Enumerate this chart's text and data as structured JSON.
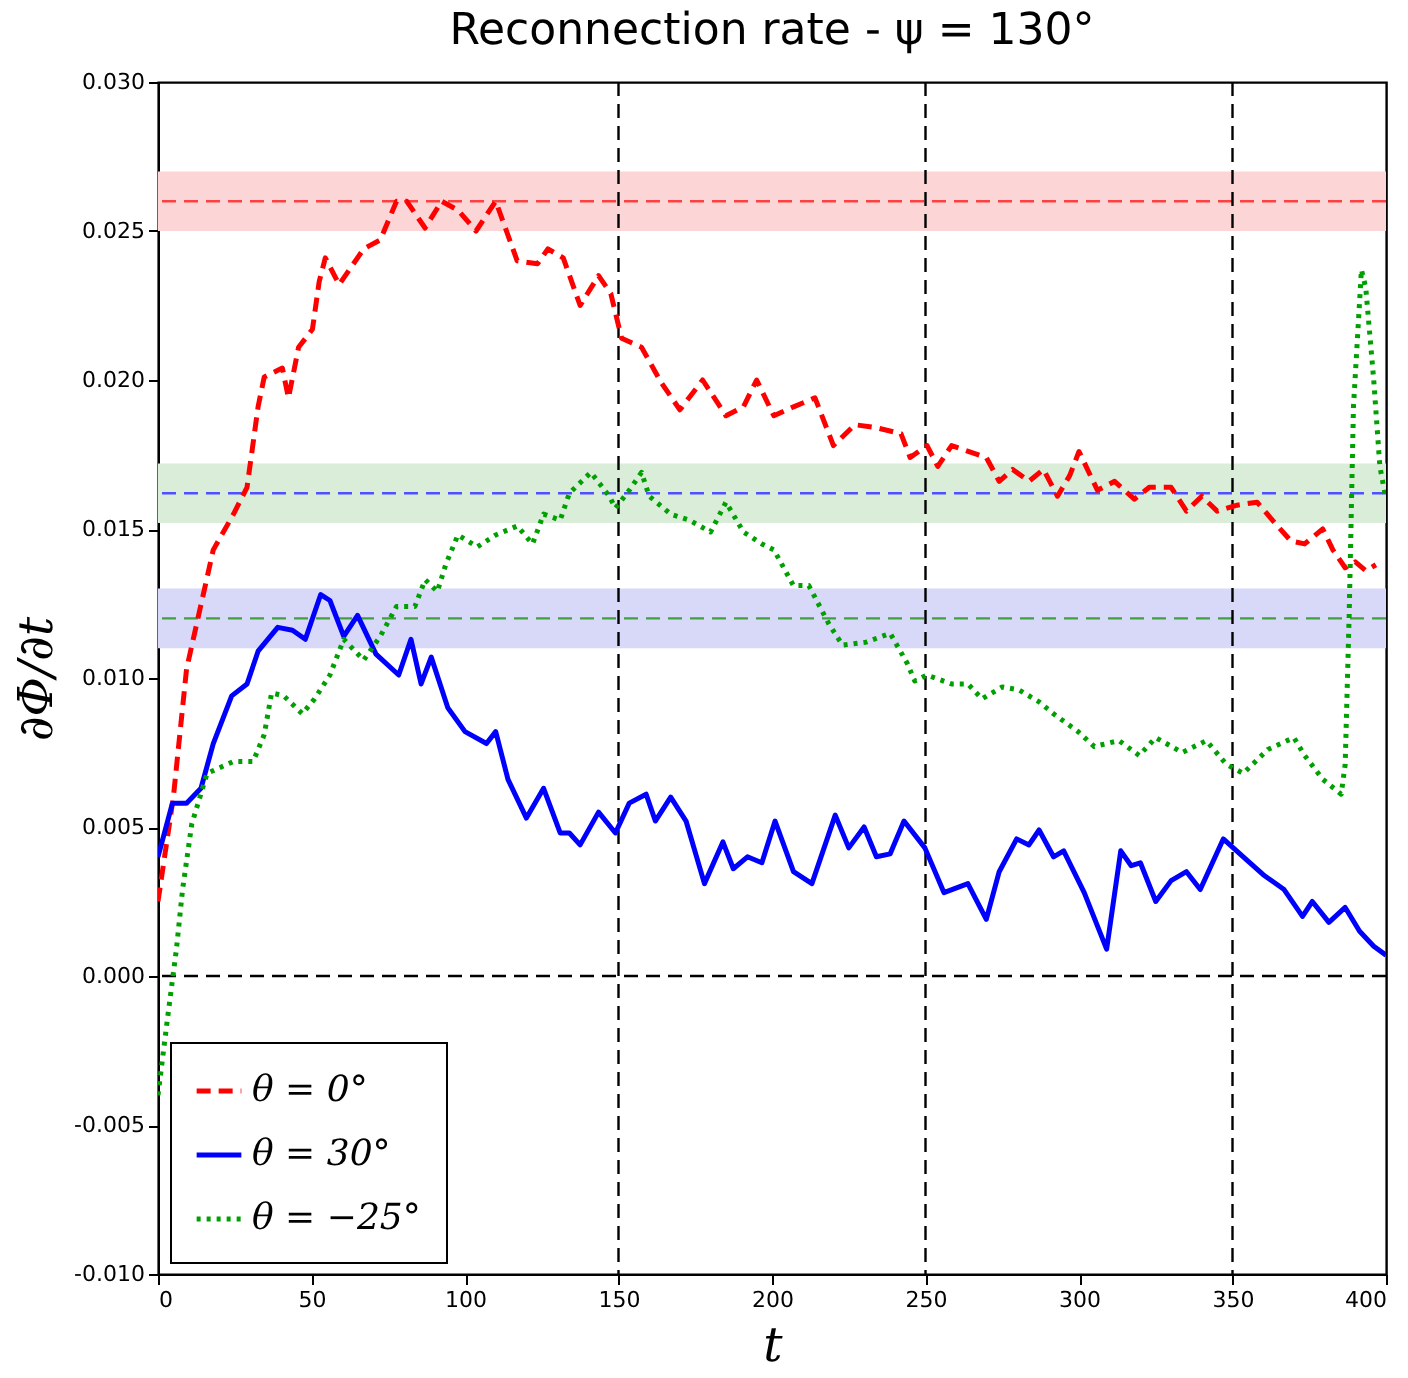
{
  "chart_data": {
    "type": "line",
    "title": "Reconnection rate - ψ = 130°",
    "xlabel": "t",
    "ylabel": "∂Φ/∂t",
    "xlim": [
      0,
      400
    ],
    "xticks": [
      0,
      50,
      100,
      150,
      200,
      250,
      300,
      350,
      400
    ],
    "ylim": [
      -0.01,
      0.03
    ],
    "yticks": [
      {
        "value": -0.01,
        "label": "-0.010"
      },
      {
        "value": -0.005,
        "label": "-0.005"
      },
      {
        "value": 0,
        "label": "0.000"
      },
      {
        "value": 0.005,
        "label": "0.005"
      },
      {
        "value": 0.01,
        "label": "0.010"
      },
      {
        "value": 0.015,
        "label": "0.015"
      },
      {
        "value": 0.02,
        "label": "0.020"
      },
      {
        "value": 0.025,
        "label": "0.025"
      },
      {
        "value": 0.03,
        "label": "0.030"
      }
    ],
    "grid": false,
    "legend": "bottom left",
    "bands": [
      {
        "axis": "y",
        "from": 0.025,
        "to": 0.027,
        "color": "#fcd6d6"
      },
      {
        "axis": "y",
        "from": 0.0152,
        "to": 0.0172,
        "color": "#d9edd9"
      },
      {
        "axis": "y",
        "from": 0.011,
        "to": 0.013,
        "color": "#d8d8f8"
      }
    ],
    "ref_lines": [
      {
        "axis": "y",
        "value": 0.026,
        "color": "#ff4040",
        "line_style": "dashed"
      },
      {
        "axis": "y",
        "value": 0.0162,
        "color": "#5050ff",
        "line_style": "dashed"
      },
      {
        "axis": "y",
        "value": 0.012,
        "color": "#40a040",
        "line_style": "dashed"
      },
      {
        "axis": "y",
        "value": 0,
        "color": "#000000",
        "line_style": "dashed"
      },
      {
        "axis": "x",
        "value": 150,
        "color": "#000000",
        "line_style": "dashed"
      },
      {
        "axis": "x",
        "value": 250,
        "color": "#000000",
        "line_style": "dashed"
      },
      {
        "axis": "x",
        "value": 350,
        "color": "#000000",
        "line_style": "dashed"
      }
    ],
    "series": [
      {
        "name": "θ = 0°",
        "color": "#ff0000",
        "line_style": "dashed",
        "x": [
          0,
          5,
          9.3,
          18,
          24.6,
          29,
          32.6,
          34.6,
          40.5,
          42.5,
          45.8,
          50.3,
          52.5,
          54.5,
          59,
          67,
          72.4,
          77.7,
          81,
          87,
          92.4,
          97.7,
          103.6,
          110,
          117,
          123.6,
          127,
          132,
          137.5,
          143.5,
          147.5,
          151,
          157.5,
          164,
          170,
          177.4,
          185,
          190.7,
          195,
          200.6,
          207,
          214,
          220,
          227,
          234,
          242,
          245,
          250.5,
          254,
          258.5,
          269.8,
          274,
          278.4,
          283.7,
          288.4,
          293,
          297,
          300,
          306,
          311.6,
          318,
          322.9,
          330,
          335,
          340,
          345,
          351.5,
          358,
          363,
          369,
          373.5,
          379.4,
          382.7,
          386.7,
          390,
          393.4,
          396.7
        ],
        "values": [
          0.0025,
          0.006,
          0.0103,
          0.0143,
          0.0155,
          0.0164,
          0.0191,
          0.0201,
          0.0204,
          0.0194,
          0.0211,
          0.0217,
          0.0233,
          0.0241,
          0.0232,
          0.0244,
          0.0247,
          0.026,
          0.026,
          0.0251,
          0.026,
          0.0257,
          0.025,
          0.026,
          0.024,
          0.0239,
          0.0244,
          0.0241,
          0.0225,
          0.0235,
          0.0229,
          0.0214,
          0.0211,
          0.0199,
          0.019,
          0.02,
          0.0188,
          0.0191,
          0.02,
          0.0188,
          0.0191,
          0.0194,
          0.0178,
          0.0185,
          0.0184,
          0.0182,
          0.0174,
          0.0178,
          0.0171,
          0.0178,
          0.0174,
          0.0166,
          0.017,
          0.0166,
          0.017,
          0.0161,
          0.0168,
          0.0176,
          0.0163,
          0.0166,
          0.016,
          0.0164,
          0.0164,
          0.0156,
          0.0161,
          0.0156,
          0.0158,
          0.0159,
          0.0153,
          0.0146,
          0.0145,
          0.015,
          0.0143,
          0.0137,
          0.0139,
          0.0136,
          0.0138
        ]
      },
      {
        "name": "θ = 30°",
        "color": "#0000ff",
        "line_style": "solid",
        "x": [
          0,
          4.7,
          9.3,
          14,
          18,
          24,
          29,
          32.6,
          39,
          43.8,
          48,
          53,
          56,
          60.5,
          65,
          71,
          78.4,
          82.4,
          85.7,
          89,
          94.4,
          100,
          107,
          110,
          114,
          120,
          125.6,
          131,
          134,
          137.5,
          143.5,
          149,
          153.5,
          159,
          162,
          167,
          172,
          178,
          184,
          187.4,
          192,
          196.7,
          201,
          207,
          213,
          220.6,
          225,
          230,
          234,
          238.5,
          243,
          249.8,
          256,
          263.8,
          269.8,
          274,
          279.7,
          283.7,
          287,
          291.7,
          295,
          301.7,
          309,
          313.6,
          317,
          320,
          325,
          330,
          335,
          339.5,
          347,
          353.5,
          360,
          366.8,
          372.8,
          376,
          381.4,
          386.7,
          391.4,
          396,
          400
        ],
        "values": [
          0.004,
          0.0058,
          0.0058,
          0.0063,
          0.0078,
          0.0094,
          0.0098,
          0.0109,
          0.0117,
          0.0116,
          0.0113,
          0.0128,
          0.0126,
          0.0114,
          0.0121,
          0.0108,
          0.0101,
          0.0113,
          0.0098,
          0.0107,
          0.009,
          0.0082,
          0.0078,
          0.0082,
          0.0066,
          0.0053,
          0.0063,
          0.0048,
          0.0048,
          0.0044,
          0.0055,
          0.0048,
          0.0058,
          0.0061,
          0.0052,
          0.006,
          0.0052,
          0.0031,
          0.0045,
          0.0036,
          0.004,
          0.0038,
          0.0052,
          0.0035,
          0.0031,
          0.0054,
          0.0043,
          0.005,
          0.004,
          0.0041,
          0.0052,
          0.0043,
          0.0028,
          0.0031,
          0.0019,
          0.0035,
          0.0046,
          0.0044,
          0.0049,
          0.004,
          0.0042,
          0.0028,
          0.0009,
          0.0042,
          0.0037,
          0.0038,
          0.0025,
          0.0032,
          0.0035,
          0.0029,
          0.0046,
          0.004,
          0.0034,
          0.0029,
          0.002,
          0.0025,
          0.0018,
          0.0023,
          0.0015,
          0.001,
          0.0007
        ]
      },
      {
        "name": "θ = −25°",
        "color": "#00a000",
        "line_style": "dotted",
        "x": [
          0,
          3,
          6,
          8,
          11,
          16,
          24.6,
          31,
          34.6,
          37,
          41,
          47,
          51,
          56,
          60.5,
          67,
          72.4,
          77.7,
          83.7,
          87,
          91,
          93.7,
          97.7,
          104,
          110,
          117,
          122,
          125.6,
          131,
          134,
          141,
          147,
          149,
          153.5,
          157.5,
          160,
          167,
          173,
          180,
          185,
          190.7,
          196.7,
          200.6,
          207,
          212,
          218.6,
          223,
          230.6,
          238.5,
          244,
          246.5,
          250.5,
          258.5,
          263.8,
          268.4,
          275,
          280.4,
          287,
          291.7,
          299.7,
          305,
          313,
          319.6,
          325,
          333.6,
          341.5,
          348,
          353.5,
          361.5,
          370,
          373.5,
          379.4,
          385.4,
          386.7,
          388,
          389.4,
          392,
          393.4,
          396,
          398,
          400
        ],
        "values": [
          -0.004,
          -0.0015,
          0.0009,
          0.0029,
          0.0051,
          0.0068,
          0.0072,
          0.0072,
          0.0081,
          0.0095,
          0.0094,
          0.0088,
          0.0093,
          0.0101,
          0.0113,
          0.0106,
          0.0114,
          0.0124,
          0.0124,
          0.0133,
          0.0129,
          0.0138,
          0.0148,
          0.0144,
          0.0148,
          0.0151,
          0.0145,
          0.0155,
          0.0153,
          0.0162,
          0.0169,
          0.0161,
          0.0157,
          0.0163,
          0.0169,
          0.0161,
          0.0155,
          0.0153,
          0.0149,
          0.0159,
          0.0149,
          0.0145,
          0.0143,
          0.0131,
          0.0131,
          0.0118,
          0.0111,
          0.0112,
          0.0115,
          0.0105,
          0.0099,
          0.0101,
          0.0098,
          0.0098,
          0.0093,
          0.0097,
          0.0096,
          0.0092,
          0.0088,
          0.0082,
          0.0077,
          0.0079,
          0.0074,
          0.008,
          0.0075,
          0.0079,
          0.0071,
          0.0068,
          0.0076,
          0.008,
          0.0074,
          0.0066,
          0.0061,
          0.0071,
          0.0121,
          0.0191,
          0.0237,
          0.0231,
          0.02,
          0.0171,
          0.016
        ]
      }
    ]
  }
}
